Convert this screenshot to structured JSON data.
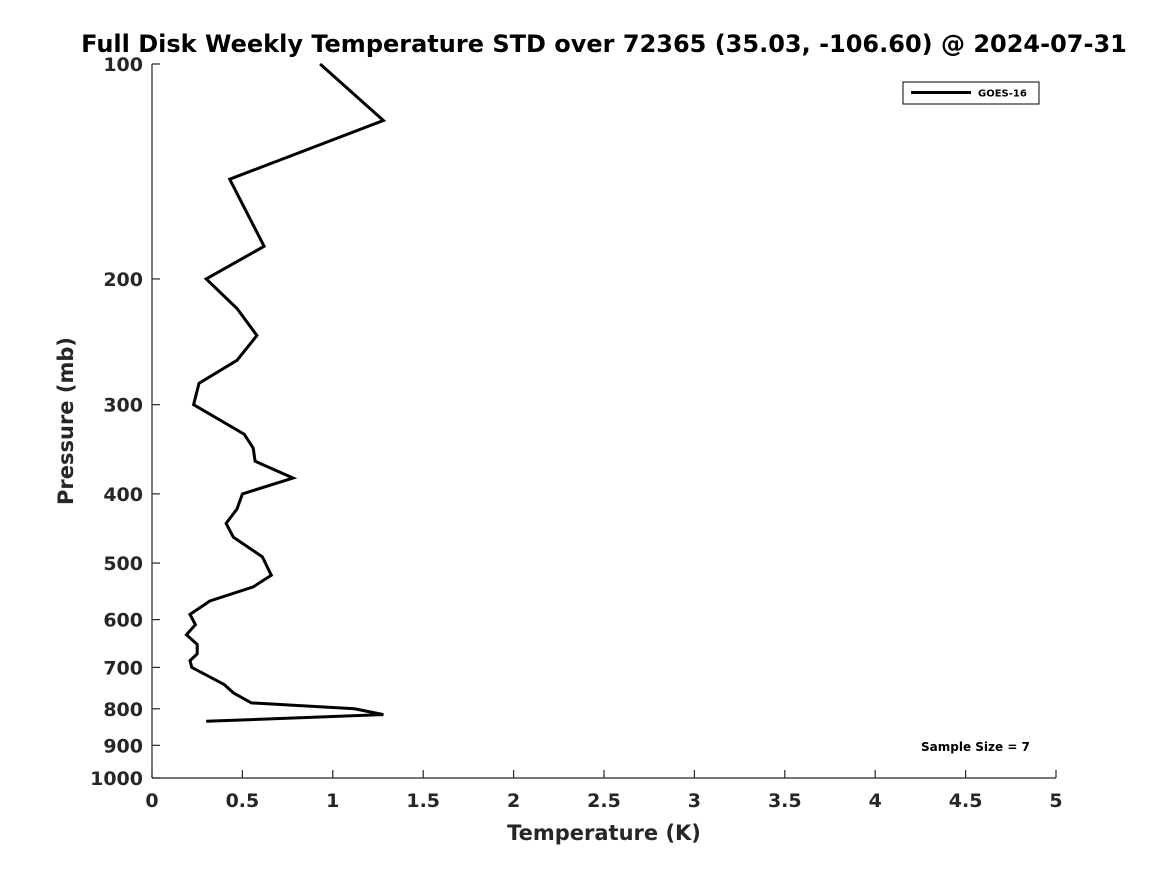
{
  "chart_data": {
    "type": "line",
    "title": "Full Disk Weekly Temperature STD over 72365 (35.03, -106.60) @ 2024-07-31",
    "xlabel": "Temperature (K)",
    "ylabel": "Pressure (mb)",
    "xlim": [
      0,
      5
    ],
    "ylim": [
      100,
      1000
    ],
    "y_scale": "log",
    "y_reversed": true,
    "x_ticks": [
      "0",
      "0.5",
      "1",
      "1.5",
      "2",
      "2.5",
      "3",
      "3.5",
      "4",
      "4.5",
      "5"
    ],
    "y_ticks": [
      "100",
      "200",
      "300",
      "400",
      "500",
      "600",
      "700",
      "800",
      "900",
      "1000"
    ],
    "grid": false,
    "legend_position": "top-right",
    "series": [
      {
        "name": "GOES-16",
        "color": "#000000",
        "points": [
          [
            0.93,
            100
          ],
          [
            1.28,
            120
          ],
          [
            0.43,
            145
          ],
          [
            0.62,
            180
          ],
          [
            0.3,
            200
          ],
          [
            0.47,
            220
          ],
          [
            0.58,
            240
          ],
          [
            0.47,
            260
          ],
          [
            0.26,
            280
          ],
          [
            0.23,
            300
          ],
          [
            0.51,
            330
          ],
          [
            0.56,
            345
          ],
          [
            0.57,
            360
          ],
          [
            0.78,
            380
          ],
          [
            0.5,
            400
          ],
          [
            0.47,
            420
          ],
          [
            0.41,
            440
          ],
          [
            0.45,
            460
          ],
          [
            0.61,
            490
          ],
          [
            0.66,
            520
          ],
          [
            0.56,
            540
          ],
          [
            0.32,
            565
          ],
          [
            0.21,
            590
          ],
          [
            0.24,
            610
          ],
          [
            0.19,
            630
          ],
          [
            0.25,
            650
          ],
          [
            0.25,
            670
          ],
          [
            0.21,
            685
          ],
          [
            0.22,
            700
          ],
          [
            0.4,
            740
          ],
          [
            0.45,
            760
          ],
          [
            0.55,
            785
          ],
          [
            1.12,
            800
          ],
          [
            1.28,
            815
          ],
          [
            0.3,
            833
          ]
        ]
      }
    ],
    "annotations": [
      "Sample Size = 7"
    ]
  }
}
